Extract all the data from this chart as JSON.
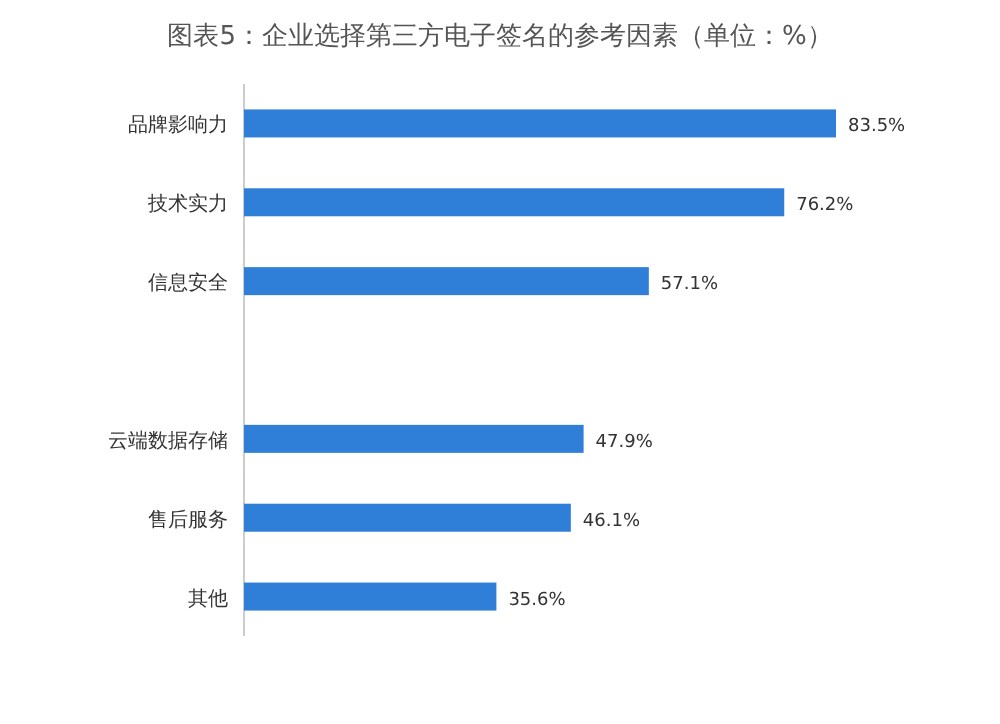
{
  "chart_data": {
    "type": "bar",
    "orientation": "horizontal",
    "title": "图表5：企业选择第三方电子签名的参考因素（单位：%）",
    "categories": [
      "品牌影响力",
      "技术实力",
      "信息安全",
      null,
      "云端数据存储",
      "售后服务",
      "其他"
    ],
    "values": [
      83.5,
      76.2,
      57.1,
      null,
      47.9,
      46.1,
      35.6
    ],
    "value_labels": [
      "83.5%",
      "76.2%",
      "57.1%",
      null,
      "47.9%",
      "46.1%",
      "35.6%"
    ],
    "color": "#2f7fd8"
  }
}
